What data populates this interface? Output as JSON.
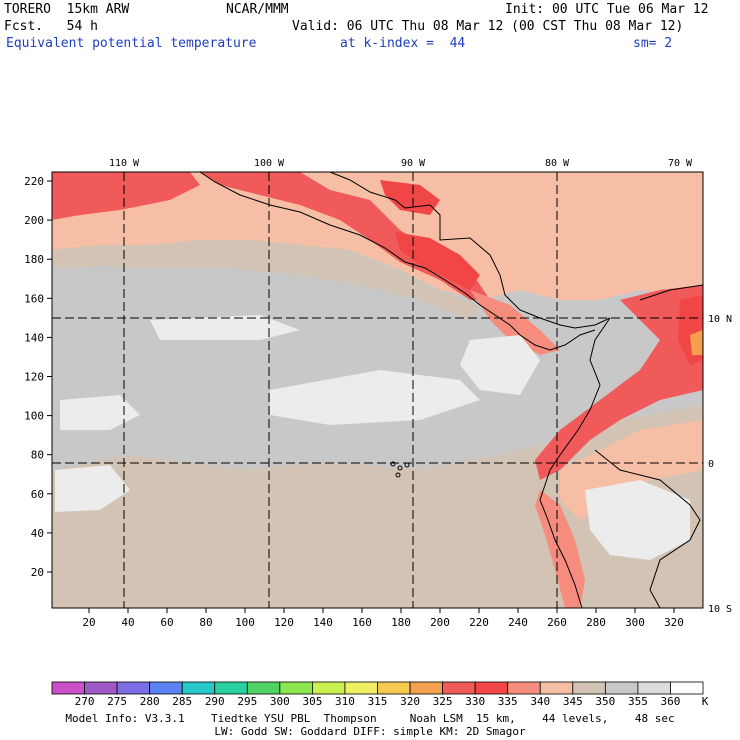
{
  "header": {
    "model": "TORERO  15km ARW",
    "org": "NCAR/MMM",
    "init": "Init: 00 UTC Tue 06 Mar 12",
    "fcst": "Fcst.   54 h",
    "valid": "Valid: 06 UTC Thu 08 Mar 12 (00 CST Thu 08 Mar 12)",
    "field": "Equivalent potential temperature",
    "level": "at k-index =  44",
    "smooth": "sm= 2"
  },
  "map": {
    "lon_labels": [
      "110 W",
      "100 W",
      "90 W",
      "80 W",
      "70 W"
    ],
    "lat_labels": [
      "10 N",
      "0",
      "10 S"
    ],
    "y_ticks": [
      "220",
      "200",
      "180",
      "160",
      "140",
      "120",
      "100",
      "80",
      "60",
      "40",
      "20"
    ],
    "x_ticks": [
      "20",
      "40",
      "60",
      "80",
      "100",
      "120",
      "140",
      "160",
      "180",
      "200",
      "220",
      "240",
      "260",
      "280",
      "300",
      "320"
    ]
  },
  "colorbar": {
    "labels": [
      "270",
      "275",
      "280",
      "285",
      "290",
      "295",
      "300",
      "305",
      "310",
      "315",
      "320",
      "325",
      "330",
      "335",
      "340",
      "345",
      "350",
      "355",
      "360"
    ],
    "unit": "K",
    "colors": [
      "#c850c8",
      "#a05ac8",
      "#7d6ee6",
      "#5a82f0",
      "#28c8c8",
      "#28d2a0",
      "#50d264",
      "#8ce650",
      "#c8f050",
      "#f0f064",
      "#f5c850",
      "#f5a050",
      "#f05a5a",
      "#f04646",
      "#f58c7d",
      "#f5bea5",
      "#d2c3b4",
      "#c8c8c8",
      "#dcdcdc",
      "#ffffff"
    ]
  },
  "footer": {
    "line1": "Model Info: V3.3.1    Tiedtke YSU PBL  Thompson     Noah LSM  15 km,    44 levels,    48 sec",
    "line2": "LW: Godd SW: Goddard DIFF: simple KM: 2D Smagor"
  }
}
